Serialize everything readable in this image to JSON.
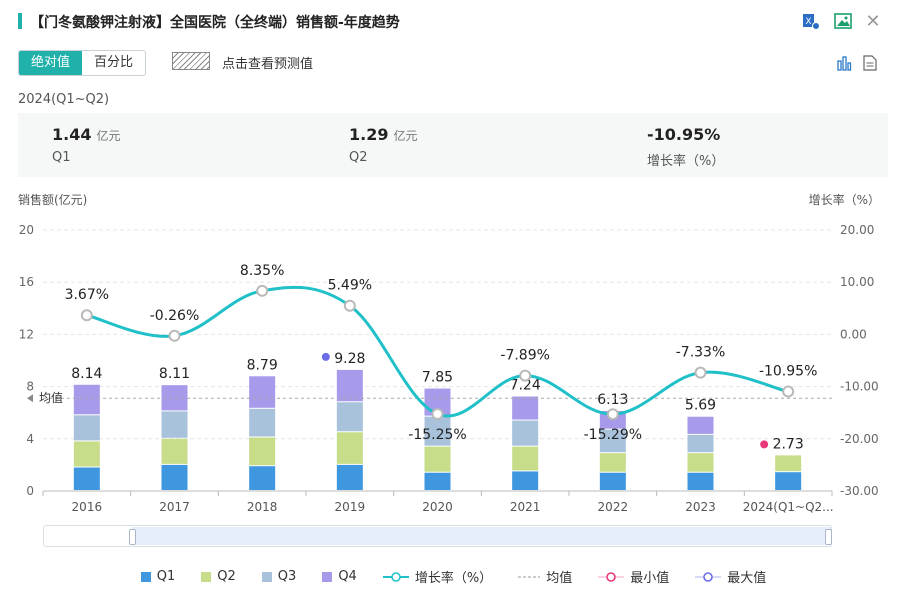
{
  "title": "【门冬氨酸钾注射液】全国医院（全终端）销售额-年度趋势",
  "icons": {
    "excel": "excel-export-icon",
    "image": "image-export-icon",
    "close": "close-icon",
    "bar": "bar-chart-icon",
    "doc": "document-icon"
  },
  "toggle": {
    "absolute": "绝对值",
    "percent": "百分比"
  },
  "forecast_label": "点击查看预测值",
  "period": "2024(Q1~Q2)",
  "summary": {
    "q1_value": "1.44",
    "q1_unit": "亿元",
    "q1_label": "Q1",
    "q2_value": "1.29",
    "q2_unit": "亿元",
    "q2_label": "Q2",
    "growth_value": "-10.95%",
    "growth_label": "增长率（%）"
  },
  "chart_data": {
    "type": "bar",
    "stacked": true,
    "ylabel": "销售额(亿元)",
    "y2label": "增长率（%）",
    "ylim": [
      0,
      20
    ],
    "y_ticks": [
      "0",
      "4",
      "8",
      "12",
      "16",
      "20"
    ],
    "y2lim": [
      -30,
      20
    ],
    "y2_ticks": [
      "-30.00",
      "-20.00",
      "-10.00",
      "0.00",
      "10.00",
      "20.00"
    ],
    "categories": [
      "2016",
      "2017",
      "2018",
      "2019",
      "2020",
      "2021",
      "2022",
      "2023",
      "2024(Q1~Q2..."
    ],
    "series": [
      {
        "name": "Q1",
        "color": "#3f97e0",
        "values": [
          1.8,
          2.0,
          1.9,
          2.0,
          1.4,
          1.5,
          1.4,
          1.4,
          1.44
        ]
      },
      {
        "name": "Q2",
        "color": "#c7dd8a",
        "values": [
          2.0,
          2.0,
          2.2,
          2.5,
          2.0,
          1.9,
          1.5,
          1.5,
          1.29
        ]
      },
      {
        "name": "Q3",
        "color": "#a8c2dc",
        "values": [
          2.0,
          2.1,
          2.2,
          2.3,
          2.3,
          2.0,
          1.8,
          1.4,
          0
        ]
      },
      {
        "name": "Q4",
        "color": "#a79aea",
        "values": [
          2.34,
          2.01,
          2.49,
          2.48,
          2.15,
          1.84,
          1.43,
          1.39,
          0
        ]
      }
    ],
    "totals": [
      "8.14",
      "8.11",
      "8.79",
      "9.28",
      "7.85",
      "7.24",
      "6.13",
      "5.69",
      "2.73"
    ],
    "growth_series": {
      "name": "增长率（%）",
      "color": "#20c0c8",
      "values": [
        3.67,
        -0.26,
        8.35,
        5.49,
        -15.25,
        -7.89,
        -15.29,
        -7.33,
        -10.95
      ]
    },
    "growth_labels": [
      "3.67%",
      "-0.26%",
      "8.35%",
      "5.49%",
      "-15.25%",
      "-7.89%",
      "-15.29%",
      "-7.33%",
      "-10.95%"
    ],
    "average": {
      "label": "均值",
      "value": 7.11
    },
    "max_index": 3,
    "min_index": 8,
    "legend": [
      "Q1",
      "Q2",
      "Q3",
      "Q4",
      "增长率（%）",
      "均值",
      "最小值",
      "最大值"
    ]
  }
}
